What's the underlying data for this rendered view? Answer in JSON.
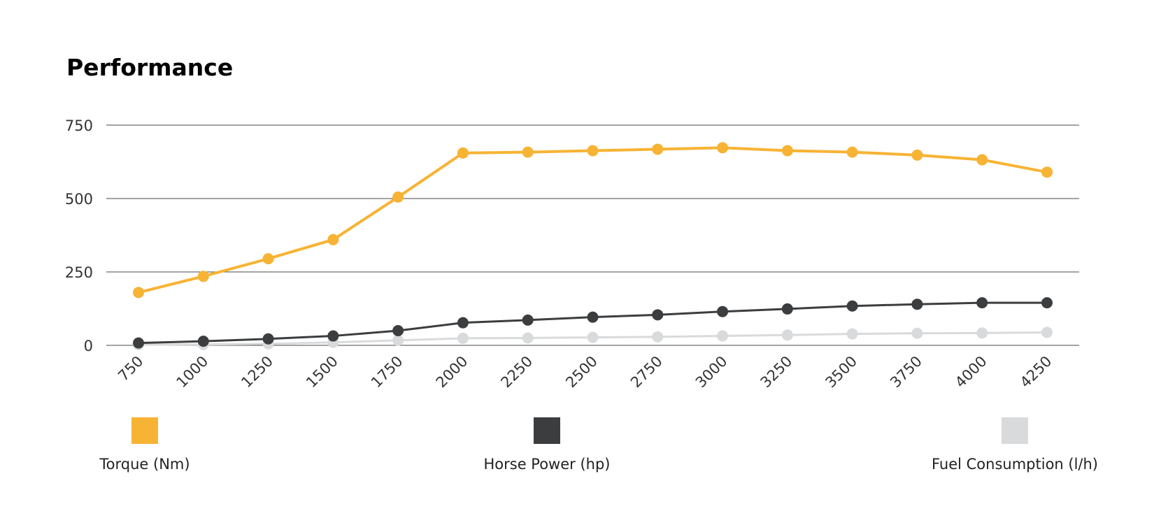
{
  "chart_data": {
    "type": "line",
    "title": "Performance",
    "xlabel": "",
    "ylabel": "",
    "x": [
      750,
      1000,
      1250,
      1500,
      1750,
      2000,
      2250,
      2500,
      2750,
      3000,
      3250,
      3500,
      3750,
      4000,
      4250
    ],
    "x_tick_labels": [
      "750",
      "1000",
      "1250",
      "1500",
      "1750",
      "2000",
      "2250",
      "2500",
      "2750",
      "3000",
      "3250",
      "3500",
      "3750",
      "4000",
      "4250"
    ],
    "ylim": [
      0,
      750
    ],
    "y_ticks": [
      0,
      250,
      500,
      750
    ],
    "y_tick_labels": [
      "0",
      "250",
      "500",
      "750"
    ],
    "grid": true,
    "legend_position": "bottom",
    "series": [
      {
        "name": "Torque (Nm)",
        "color": "#f7b334",
        "values": [
          180,
          235,
          295,
          360,
          505,
          655,
          658,
          663,
          668,
          673,
          663,
          658,
          648,
          632,
          590
        ]
      },
      {
        "name": "Horse Power (hp)",
        "color": "#3b3d3f",
        "values": [
          8,
          14,
          22,
          32,
          50,
          77,
          86,
          96,
          104,
          115,
          124,
          134,
          140,
          145,
          145
        ]
      },
      {
        "name": "Fuel Consumption (l/h)",
        "color": "#d8dadc",
        "values": [
          2,
          3,
          5,
          10,
          17,
          24,
          25,
          27,
          29,
          32,
          35,
          39,
          41,
          42,
          44
        ]
      }
    ]
  }
}
